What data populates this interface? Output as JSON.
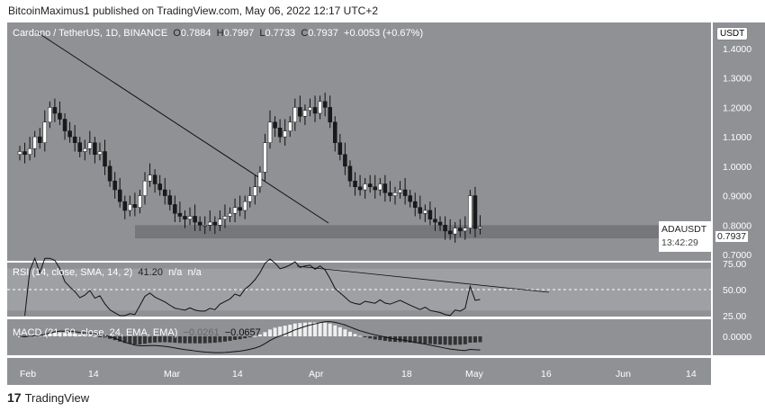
{
  "header": {
    "published": "BitcoinMaximus1 published on TradingView.com, May 06, 2022 12:17 UTC+2"
  },
  "legend": {
    "symbol": "Cardano / TetherUS, 1D, BINANCE",
    "o_label": "O",
    "o": "0.7884",
    "h_label": "H",
    "h": "0.7997",
    "l_label": "L",
    "l": "0.7733",
    "c_label": "C",
    "c": "0.7937",
    "change": "+0.0053 (+0.67%)"
  },
  "rsi_legend": {
    "title": "RSI (14, close, SMA, 14, 2)",
    "value": "41.20",
    "v2": "n/a",
    "v3": "n/a"
  },
  "macd_legend": {
    "title": "MACD (21, 50, close, 24, EMA, EMA)",
    "v1": "−0.0261",
    "v2": "−0.0657"
  },
  "price_tag": {
    "symbol": "ADAUSDT",
    "price": "0.7937",
    "countdown": "13:42:29"
  },
  "currency": "USDT",
  "footer": {
    "brand": "TradingView"
  },
  "colors": {
    "bg": "#8f9195",
    "up": "#ffffff",
    "down": "#1a1a1a",
    "support": "#6e7074"
  },
  "chart_data": {
    "type": "candlestick",
    "title": "Cardano / TetherUS, 1D",
    "price_ticks": [
      "1.4000",
      "1.3000",
      "1.2000",
      "1.1000",
      "1.0000",
      "0.9000",
      "0.8000",
      "0.7000"
    ],
    "ylim": [
      0.7,
      1.4
    ],
    "rsi_ticks": [
      "75.00",
      "50.00",
      "25.00"
    ],
    "macd_ticks": [
      "0.0000"
    ],
    "time_ticks": [
      "Feb",
      "14",
      "Mar",
      "14",
      "Apr",
      "18",
      "May",
      "16",
      "Jun",
      "14"
    ],
    "support_zone": [
      0.755,
      0.8
    ],
    "closes": [
      1.05,
      1.04,
      1.06,
      1.1,
      1.08,
      1.15,
      1.2,
      1.18,
      1.16,
      1.12,
      1.1,
      1.08,
      1.05,
      1.06,
      1.08,
      1.04,
      1.05,
      1.0,
      0.95,
      0.92,
      0.88,
      0.85,
      0.87,
      0.86,
      0.9,
      0.95,
      0.97,
      0.94,
      0.92,
      0.9,
      0.87,
      0.84,
      0.83,
      0.82,
      0.83,
      0.81,
      0.8,
      0.8,
      0.81,
      0.8,
      0.82,
      0.83,
      0.84,
      0.86,
      0.85,
      0.88,
      0.9,
      0.93,
      0.98,
      1.08,
      1.15,
      1.13,
      1.1,
      1.12,
      1.15,
      1.2,
      1.17,
      1.19,
      1.2,
      1.18,
      1.22,
      1.2,
      1.15,
      1.08,
      1.04,
      1.0,
      0.95,
      0.93,
      0.92,
      0.94,
      0.93,
      0.92,
      0.94,
      0.91,
      0.9,
      0.91,
      0.92,
      0.9,
      0.88,
      0.86,
      0.84,
      0.85,
      0.82,
      0.81,
      0.8,
      0.78,
      0.77,
      0.79,
      0.78,
      0.79,
      0.9,
      0.7884,
      0.7937
    ]
  }
}
